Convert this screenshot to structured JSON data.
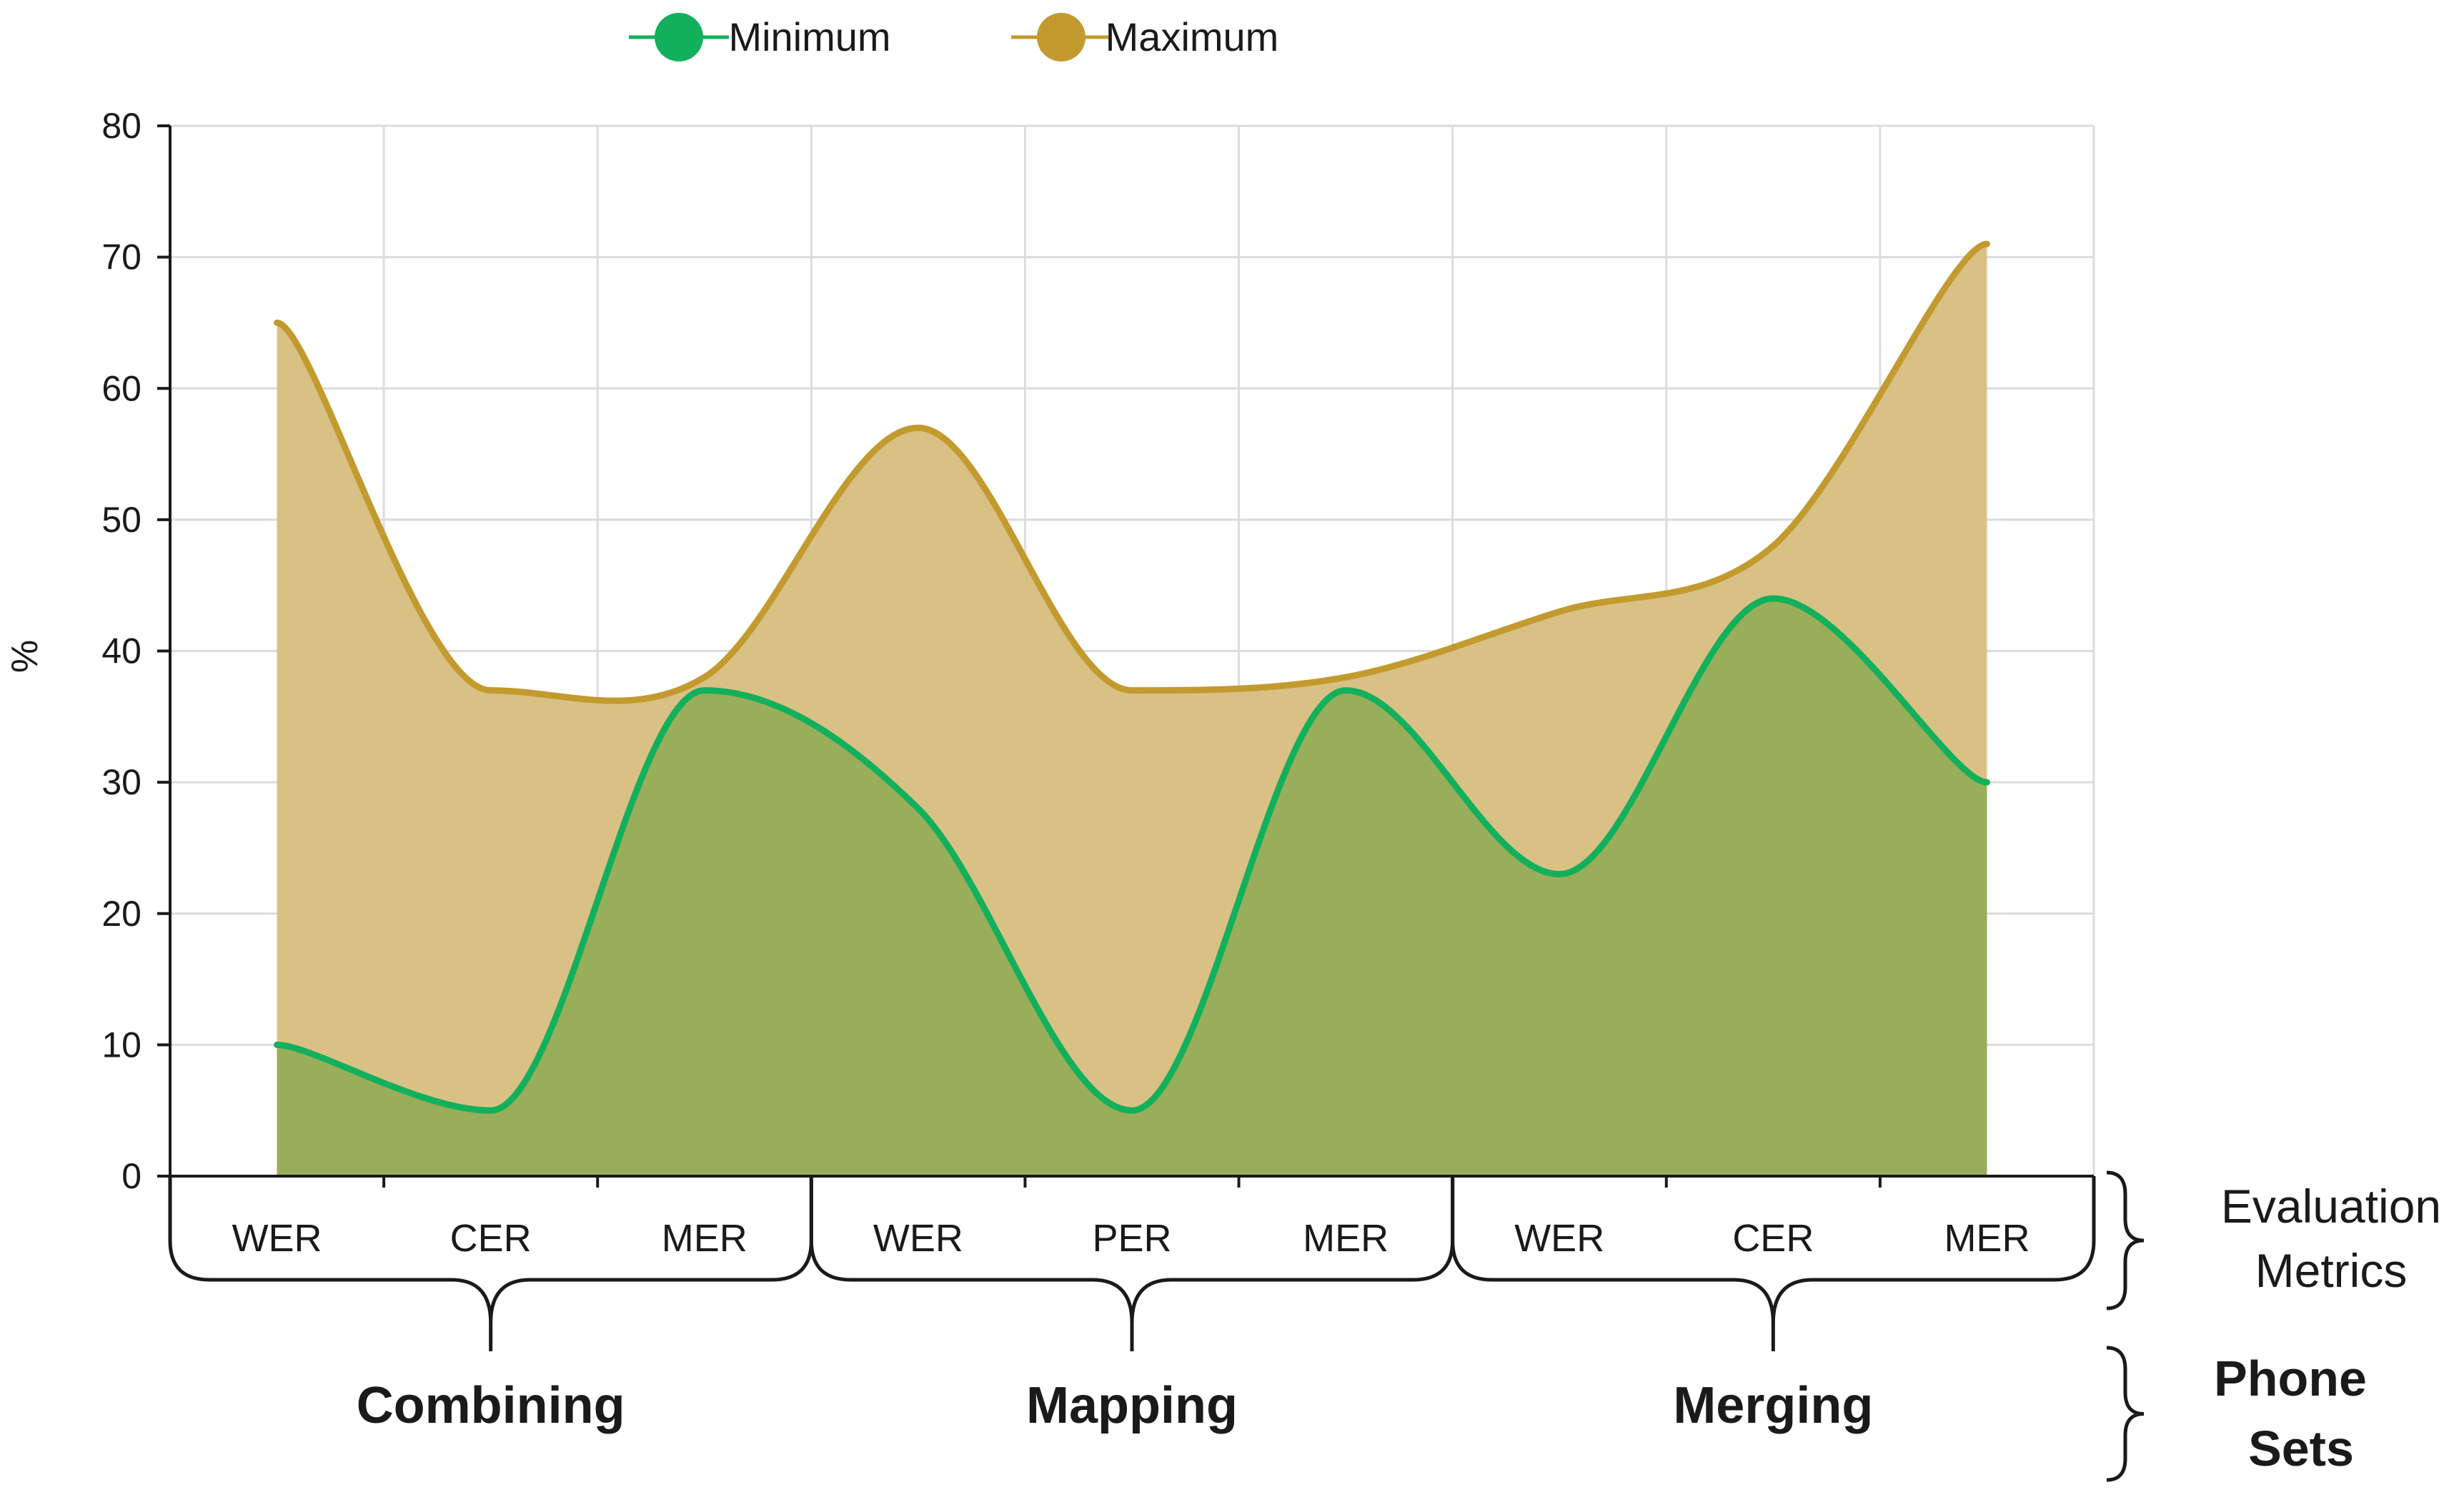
{
  "chart_data": {
    "type": "area",
    "categories": [
      "WER",
      "CER",
      "MER",
      "WER",
      "PER",
      "MER",
      "WER",
      "CER",
      "MER"
    ],
    "groups": [
      {
        "label": "Combining",
        "span": [
          0,
          2
        ]
      },
      {
        "label": "Mapping",
        "span": [
          3,
          5
        ]
      },
      {
        "label": "Merging",
        "span": [
          6,
          8
        ]
      }
    ],
    "series": [
      {
        "name": "Maximum",
        "values": [
          65,
          37,
          38,
          57,
          37,
          38,
          43,
          48,
          71
        ],
        "color": "#C29A2E",
        "fill": "#D9C185"
      },
      {
        "name": "Minimum",
        "values": [
          10,
          5,
          37,
          28,
          5,
          37,
          23,
          44,
          30
        ],
        "color": "#12B05C",
        "fill": "#99AE5A"
      }
    ],
    "ylabel": "%",
    "ylim": [
      0,
      80
    ],
    "yticks": [
      0,
      10,
      20,
      30,
      40,
      50,
      60,
      70,
      80
    ],
    "grid": true,
    "legend_position": "top-center",
    "row_labels": {
      "metrics_line1": "Evaluation",
      "metrics_line2": "Metrics",
      "sets_line1": "Phone",
      "sets_line2": "Sets"
    }
  }
}
